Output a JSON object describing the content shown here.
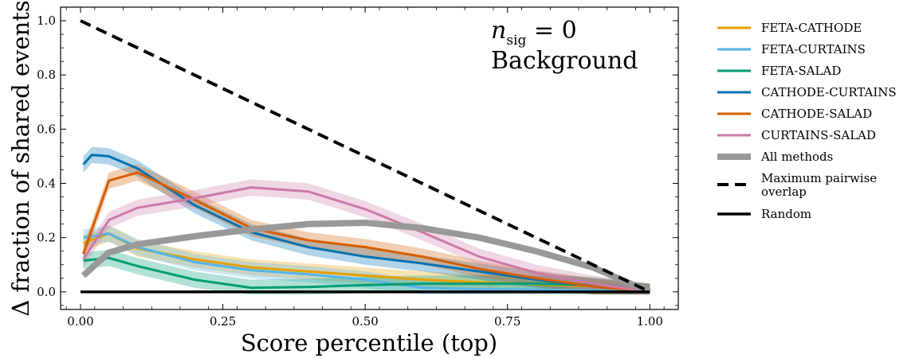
{
  "chart_data": {
    "type": "line",
    "xlabel": "Score percentile (top)",
    "ylabel": "Δ fraction of shared events",
    "xlim": [
      -0.035,
      1.05
    ],
    "ylim": [
      -0.065,
      1.05
    ],
    "xticks": [
      0.0,
      0.25,
      0.5,
      0.75,
      1.0
    ],
    "xtick_labels": [
      "0.00",
      "0.25",
      "0.50",
      "0.75",
      "1.00"
    ],
    "yticks": [
      0.0,
      0.2,
      0.4,
      0.6,
      0.8,
      1.0
    ],
    "ytick_labels": [
      "0.0",
      "0.2",
      "0.4",
      "0.6",
      "0.8",
      "1.0"
    ],
    "grid": false,
    "legend_position": "outside-right",
    "annotation": {
      "line1_main": "n",
      "line1_sub": "sig",
      "line1_rest": " = 0",
      "line2": "Background"
    },
    "series": [
      {
        "name": "FETA-CATHODE",
        "color": "#E69F00",
        "band": 0.03,
        "x": [
          0.005,
          0.05,
          0.1,
          0.2,
          0.3,
          0.4,
          0.5,
          0.6,
          0.7,
          0.8,
          0.9,
          1.0
        ],
        "y": [
          0.18,
          0.215,
          0.16,
          0.12,
          0.09,
          0.075,
          0.06,
          0.045,
          0.035,
          0.028,
          0.02,
          0.0
        ]
      },
      {
        "name": "FETA-CURTAINS",
        "color": "#56B4E9",
        "band": 0.03,
        "x": [
          0.005,
          0.05,
          0.1,
          0.2,
          0.3,
          0.4,
          0.5,
          0.6,
          0.7,
          0.8,
          0.9,
          1.0
        ],
        "y": [
          0.2,
          0.215,
          0.165,
          0.11,
          0.08,
          0.065,
          0.045,
          0.015,
          0.01,
          0.008,
          0.005,
          0.0
        ]
      },
      {
        "name": "FETA-SALAD",
        "color": "#009E73",
        "band": 0.03,
        "x": [
          0.005,
          0.05,
          0.1,
          0.2,
          0.3,
          0.4,
          0.5,
          0.6,
          0.7,
          0.8,
          0.9,
          1.0
        ],
        "y": [
          0.115,
          0.125,
          0.095,
          0.045,
          0.015,
          0.018,
          0.025,
          0.03,
          0.03,
          0.03,
          0.025,
          0.0
        ]
      },
      {
        "name": "CATHODE-CURTAINS",
        "color": "#0072B2",
        "band": 0.03,
        "x": [
          0.005,
          0.02,
          0.05,
          0.1,
          0.2,
          0.3,
          0.4,
          0.5,
          0.6,
          0.7,
          0.8,
          0.9,
          1.0
        ],
        "y": [
          0.47,
          0.505,
          0.5,
          0.455,
          0.32,
          0.22,
          0.165,
          0.13,
          0.105,
          0.075,
          0.045,
          0.02,
          0.0
        ]
      },
      {
        "name": "CATHODE-SALAD",
        "color": "#D55E00",
        "band": 0.03,
        "x": [
          0.005,
          0.05,
          0.1,
          0.2,
          0.3,
          0.4,
          0.5,
          0.6,
          0.7,
          0.8,
          0.9,
          1.0
        ],
        "y": [
          0.14,
          0.41,
          0.44,
          0.34,
          0.235,
          0.19,
          0.165,
          0.13,
          0.085,
          0.05,
          0.02,
          0.0
        ]
      },
      {
        "name": "CURTAINS-SALAD",
        "color": "#CC79A7",
        "band": 0.03,
        "x": [
          0.005,
          0.05,
          0.1,
          0.2,
          0.3,
          0.4,
          0.5,
          0.6,
          0.7,
          0.8,
          0.9,
          1.0
        ],
        "y": [
          0.12,
          0.265,
          0.31,
          0.345,
          0.385,
          0.37,
          0.305,
          0.22,
          0.13,
          0.07,
          0.03,
          0.0
        ]
      },
      {
        "name": "All methods",
        "color": "#999999",
        "width": 8,
        "band": 0.01,
        "x": [
          0.005,
          0.05,
          0.1,
          0.2,
          0.3,
          0.4,
          0.5,
          0.6,
          0.7,
          0.8,
          0.9,
          1.0
        ],
        "y": [
          0.06,
          0.145,
          0.175,
          0.205,
          0.23,
          0.25,
          0.255,
          0.235,
          0.2,
          0.15,
          0.09,
          0.0
        ]
      },
      {
        "name": "Maximum pairwise overlap",
        "color": "#000000",
        "dash": "14,8",
        "width": 4,
        "x": [
          0.0,
          1.0
        ],
        "y": [
          1.0,
          0.0
        ]
      },
      {
        "name": "Random",
        "color": "#000000",
        "width": 3.5,
        "x": [
          0.0,
          1.0
        ],
        "y": [
          0.0,
          0.0
        ]
      }
    ]
  },
  "legend": {
    "items": [
      {
        "label": "FETA-CATHODE",
        "color": "#E69F00"
      },
      {
        "label": "FETA-CURTAINS",
        "color": "#56B4E9"
      },
      {
        "label": "FETA-SALAD",
        "color": "#009E73"
      },
      {
        "label": "CATHODE-CURTAINS",
        "color": "#0072B2"
      },
      {
        "label": "CATHODE-SALAD",
        "color": "#D55E00"
      },
      {
        "label": "CURTAINS-SALAD",
        "color": "#CC79A7"
      },
      {
        "label": "All methods",
        "color": "#999999"
      },
      {
        "label": "Maximum pairwise",
        "label2": "overlap",
        "color": "#000000"
      },
      {
        "label": "Random",
        "color": "#000000"
      }
    ]
  }
}
